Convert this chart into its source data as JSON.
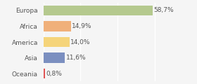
{
  "categories": [
    "Europa",
    "Africa",
    "America",
    "Asia",
    "Oceania"
  ],
  "values": [
    58.7,
    14.9,
    14.0,
    11.6,
    0.8
  ],
  "labels": [
    "58,7%",
    "14,9%",
    "14,0%",
    "11,6%",
    "0,8%"
  ],
  "bar_colors": [
    "#b5c98e",
    "#f0b07a",
    "#f5d47a",
    "#7b8fc0",
    "#e05555"
  ],
  "background_color": "#f5f5f5",
  "xlim": [
    0,
    70
  ],
  "label_fontsize": 6.5,
  "category_fontsize": 6.5,
  "grid_color": "#ffffff",
  "text_color": "#555555"
}
